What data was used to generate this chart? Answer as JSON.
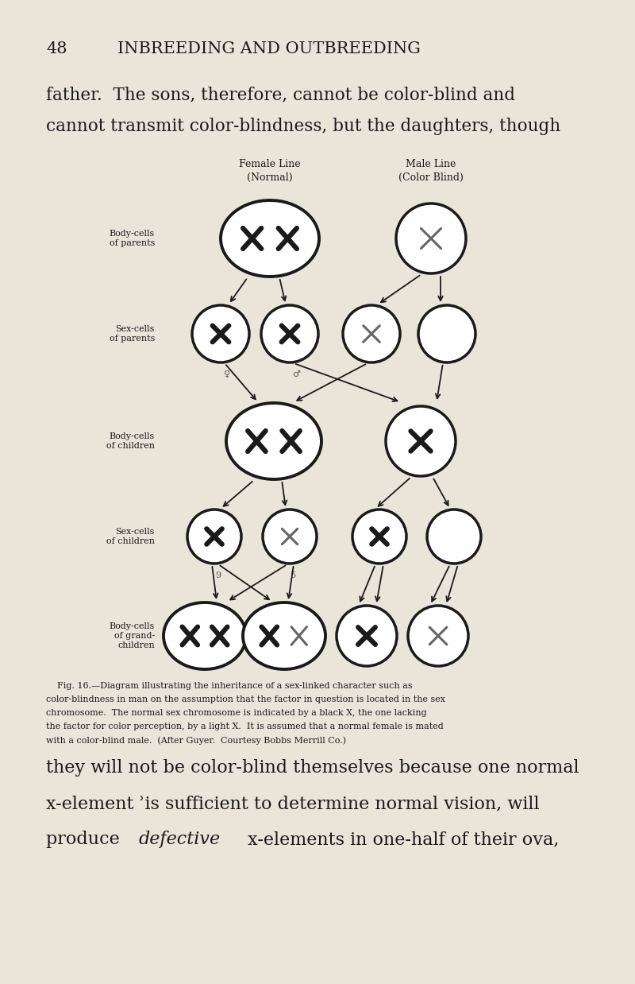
{
  "bg_color": "#e9e5d9",
  "title_num": "48",
  "title_text": "INBREEDING AND OUTBREEDING",
  "header_text1": "father.  The sons, therefore, cannot be color-blind and",
  "header_text2": "cannot transmit color-blindness, but the daughters, though",
  "female_line_label": "Female Line\n(Normal)",
  "male_line_label": "Male Line\n(Color Blind)",
  "row_labels": [
    "Body-cells\nof parents",
    "Sex-cells\nof parents",
    "Body-cells\nof children",
    "Sex-cells\nof children",
    "Body-cells\nof grand-\nchildren"
  ],
  "caption": "Fig. 16.—Diagram illustrating the inheritance of a sex-linked character such as\ncolor-blindness in man on the assumption that the factor in question is located in the sex\nchromosome.  The normal sex chromosome is indicated by a black X, the one lacking\nthe factor for color perception, by a light X.  It is assumed that a normal female is mated\nwith a color-blind male.  (After Guyer.  Courtesy Bobbs Merrill Co.)",
  "footer_text1": "they will not be color-blind themselves because one normal",
  "footer_text2": "x-element ʾis sufficient to determine normal vision, will",
  "footer_text3_a": "produce ",
  "footer_text3_b": "defective",
  "footer_text3_c": " x-elements in one-half of their ova,"
}
